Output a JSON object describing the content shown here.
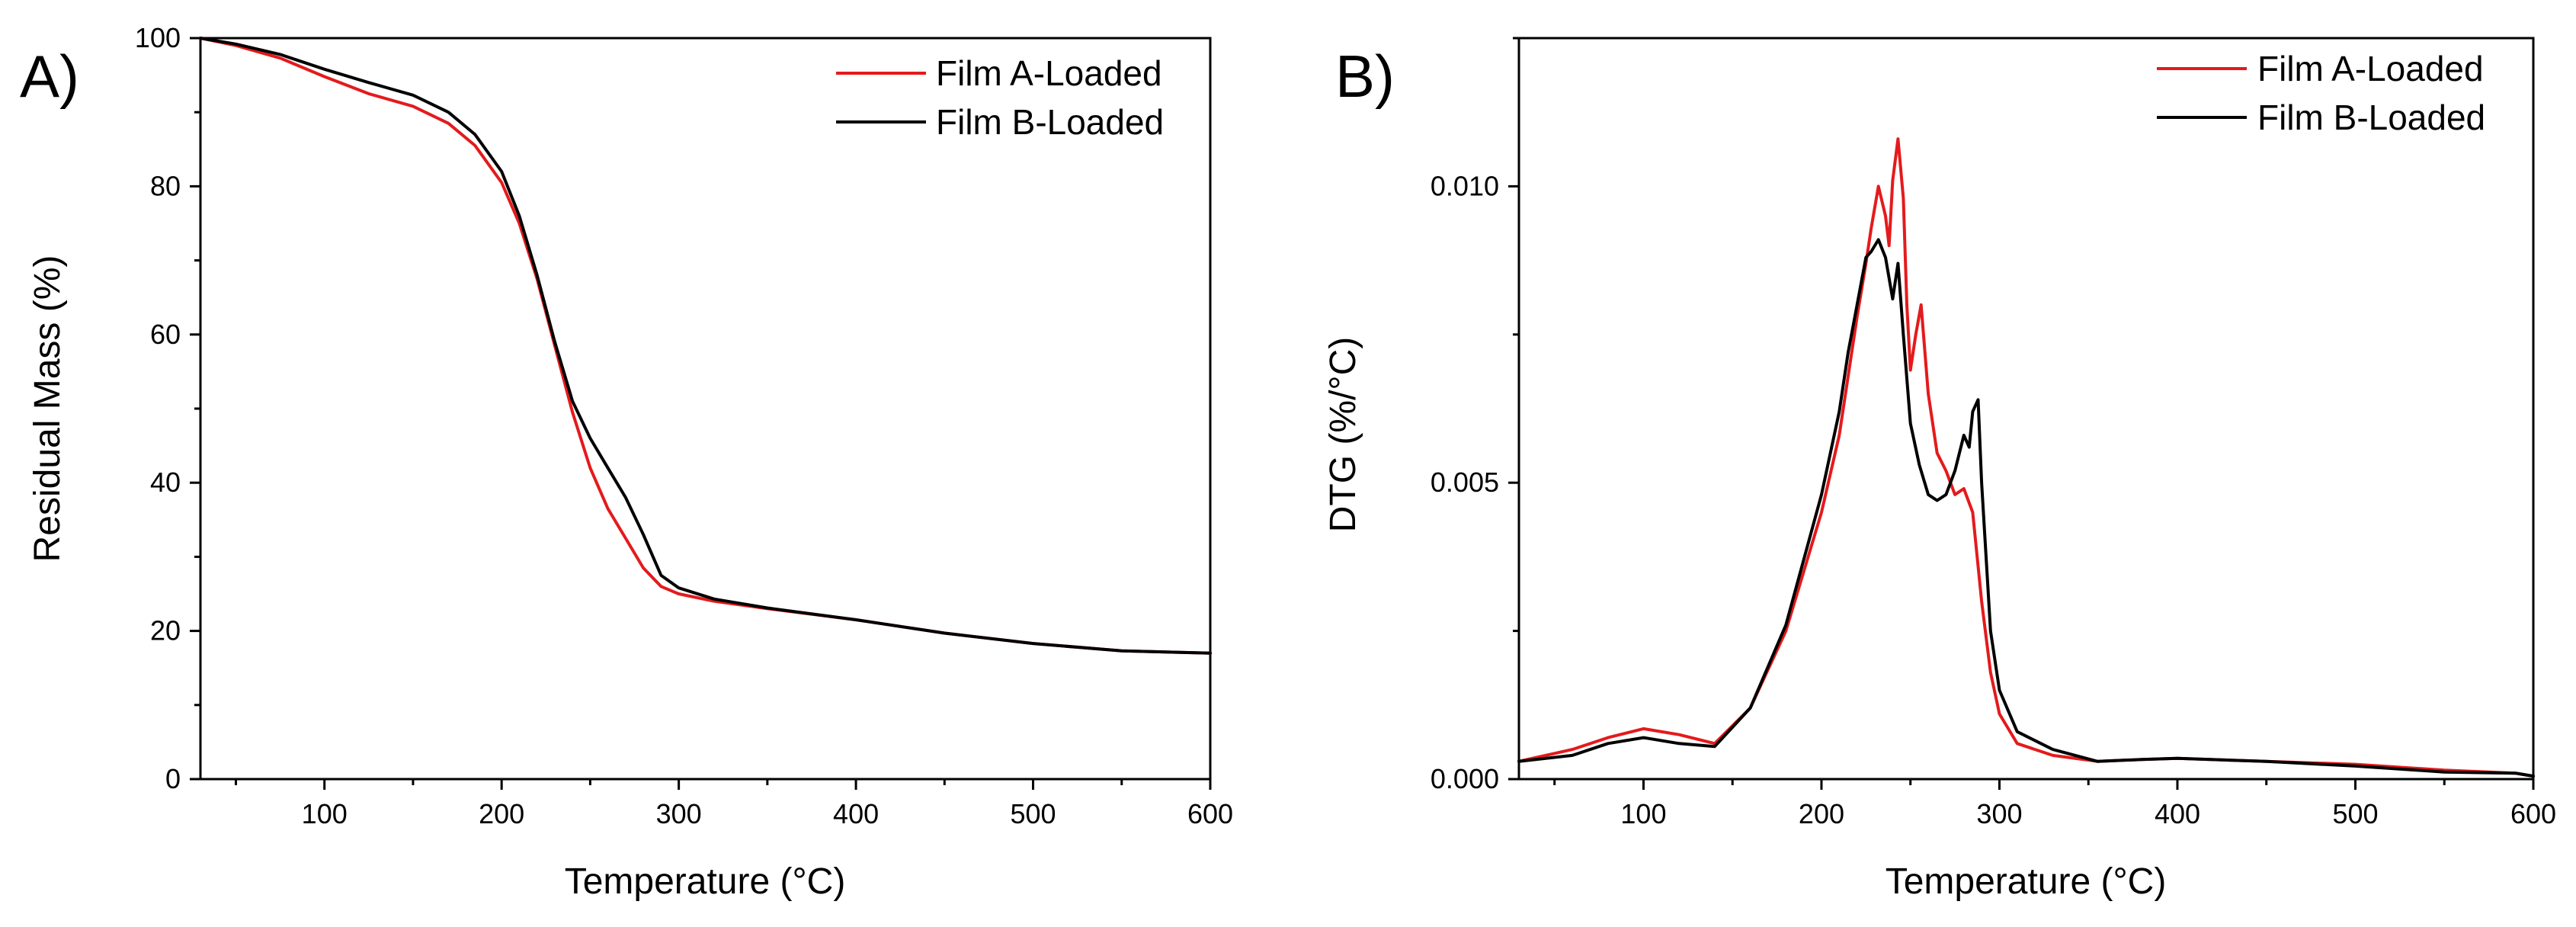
{
  "colors": {
    "film_a": "#e41a1c",
    "film_b": "#000000"
  },
  "chart_data": [
    {
      "panel": "A)",
      "type": "line",
      "xlabel": "Temperature (°C)",
      "ylabel": "Residual Mass (%)",
      "xlim": [
        30,
        600
      ],
      "ylim": [
        0,
        100
      ],
      "xticks": [
        100,
        200,
        300,
        400,
        500,
        600
      ],
      "xtick_labels": [
        "100",
        "200",
        "300",
        "400",
        "500",
        "600"
      ],
      "yticks": [
        0,
        20,
        40,
        60,
        80,
        100
      ],
      "ytick_labels": [
        "0",
        "20",
        "40",
        "60",
        "80",
        "100"
      ],
      "legend_position": "top-right",
      "series": [
        {
          "name": "Film A-Loaded",
          "color": "#e41a1c",
          "x": [
            30,
            50,
            75,
            100,
            125,
            150,
            170,
            185,
            200,
            210,
            220,
            230,
            240,
            250,
            260,
            270,
            280,
            290,
            300,
            320,
            350,
            400,
            450,
            500,
            550,
            600
          ],
          "y": [
            100,
            99,
            97.3,
            94.8,
            92.5,
            90.8,
            88.5,
            85.5,
            80.5,
            75,
            67.5,
            58.5,
            49.5,
            42,
            36.5,
            32.5,
            28.5,
            26,
            25,
            24,
            23,
            21.5,
            19.7,
            18.3,
            17.3,
            17
          ]
        },
        {
          "name": "Film B-Loaded",
          "color": "#000000",
          "x": [
            30,
            50,
            75,
            100,
            125,
            150,
            170,
            185,
            200,
            210,
            220,
            230,
            240,
            250,
            260,
            270,
            280,
            290,
            300,
            320,
            350,
            400,
            450,
            500,
            550,
            600
          ],
          "y": [
            100,
            99.2,
            97.8,
            95.8,
            94,
            92.3,
            90,
            87,
            82,
            76,
            68,
            59,
            51,
            46,
            42,
            38,
            33,
            27.5,
            25.8,
            24.3,
            23.1,
            21.5,
            19.7,
            18.3,
            17.3,
            17
          ]
        }
      ]
    },
    {
      "panel": "B)",
      "type": "line",
      "xlabel": "Temperature (°C)",
      "ylabel": "DTG (%/°C)",
      "xlim": [
        30,
        600
      ],
      "ylim": [
        0,
        0.0125
      ],
      "xticks": [
        100,
        200,
        300,
        400,
        500,
        600
      ],
      "xtick_labels": [
        "100",
        "200",
        "300",
        "400",
        "500",
        "600"
      ],
      "yticks": [
        0,
        0.005,
        0.01
      ],
      "ytick_labels": [
        "0.000",
        "0.005",
        "0.010"
      ],
      "legend_position": "top-right",
      "series": [
        {
          "name": "Film A-Loaded",
          "color": "#e41a1c",
          "x": [
            30,
            60,
            80,
            100,
            120,
            140,
            160,
            180,
            200,
            210,
            215,
            220,
            225,
            228,
            232,
            236,
            238,
            240,
            243,
            246,
            248,
            250,
            253,
            256,
            260,
            265,
            270,
            275,
            280,
            285,
            290,
            295,
            300,
            310,
            330,
            355,
            380,
            400,
            450,
            500,
            550,
            590,
            600
          ],
          "y": [
            0.0003,
            0.0005,
            0.0007,
            0.00085,
            0.00075,
            0.0006,
            0.0012,
            0.0025,
            0.0045,
            0.0058,
            0.0068,
            0.0078,
            0.0087,
            0.0093,
            0.01,
            0.0095,
            0.009,
            0.0101,
            0.0108,
            0.0098,
            0.008,
            0.0069,
            0.0075,
            0.008,
            0.0065,
            0.0055,
            0.0052,
            0.0048,
            0.0049,
            0.0045,
            0.003,
            0.0018,
            0.0011,
            0.0006,
            0.0004,
            0.0003,
            0.00033,
            0.00035,
            0.0003,
            0.00025,
            0.00015,
            0.0001,
            5e-05
          ]
        },
        {
          "name": "Film B-Loaded",
          "color": "#000000",
          "x": [
            30,
            60,
            80,
            100,
            120,
            140,
            160,
            180,
            200,
            210,
            215,
            220,
            225,
            228,
            232,
            236,
            240,
            243,
            246,
            250,
            255,
            260,
            265,
            270,
            275,
            280,
            283,
            285,
            288,
            290,
            295,
            300,
            310,
            330,
            355,
            380,
            400,
            450,
            500,
            550,
            590,
            600
          ],
          "y": [
            0.0003,
            0.0004,
            0.0006,
            0.0007,
            0.0006,
            0.00055,
            0.0012,
            0.0026,
            0.0048,
            0.0062,
            0.0072,
            0.008,
            0.0088,
            0.0089,
            0.0091,
            0.0088,
            0.0081,
            0.0087,
            0.0075,
            0.006,
            0.0053,
            0.0048,
            0.0047,
            0.0048,
            0.0052,
            0.0058,
            0.0056,
            0.0062,
            0.0064,
            0.005,
            0.0025,
            0.0015,
            0.0008,
            0.0005,
            0.0003,
            0.00033,
            0.00035,
            0.0003,
            0.00022,
            0.00012,
            0.0001,
            5e-05
          ]
        }
      ]
    }
  ]
}
